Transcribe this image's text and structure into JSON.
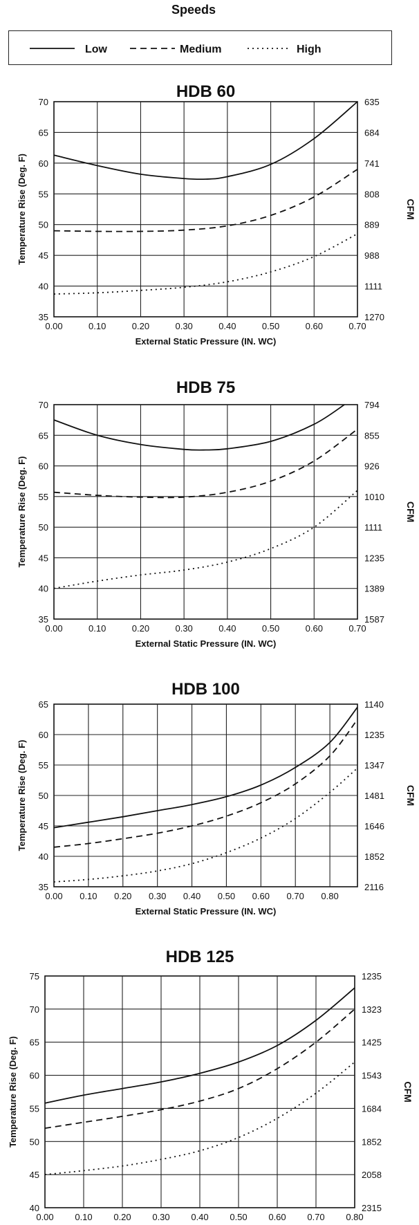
{
  "legend": {
    "title": "Speeds",
    "items": [
      {
        "label": "Low",
        "style": "solid"
      },
      {
        "label": "Medium",
        "style": "dashed"
      },
      {
        "label": "High",
        "style": "dotted"
      }
    ]
  },
  "chart_data": [
    {
      "type": "line",
      "title": "HDB 60",
      "xlabel": "External Static Pressure (IN. WC)",
      "ylabel": "Temperature Rise (Deg. F)",
      "y2label": "CFM",
      "xlim": [
        0,
        0.7
      ],
      "ylim": [
        35,
        70
      ],
      "x_ticks": [
        "0.00",
        "0.10",
        "0.20",
        "0.30",
        "0.40",
        "0.50",
        "0.60",
        "0.70"
      ],
      "y_ticks": [
        "35",
        "40",
        "45",
        "50",
        "55",
        "60",
        "65",
        "70"
      ],
      "y2_ticks": [
        "1270",
        "1111",
        "988",
        "889",
        "808",
        "741",
        "684",
        "635"
      ],
      "grid": true,
      "series": [
        {
          "name": "Low",
          "x": [
            0,
            0.1,
            0.2,
            0.3,
            0.35,
            0.4,
            0.5,
            0.6,
            0.7
          ],
          "y": [
            61.3,
            59.6,
            58.2,
            57.5,
            57.4,
            57.8,
            59.8,
            64.0,
            70.0
          ]
        },
        {
          "name": "Medium",
          "x": [
            0,
            0.1,
            0.2,
            0.3,
            0.4,
            0.5,
            0.6,
            0.7
          ],
          "y": [
            49.0,
            48.9,
            48.9,
            49.1,
            49.8,
            51.5,
            54.5,
            59.0
          ]
        },
        {
          "name": "High",
          "x": [
            0,
            0.1,
            0.2,
            0.3,
            0.4,
            0.5,
            0.6,
            0.7
          ],
          "y": [
            38.7,
            38.9,
            39.3,
            39.8,
            40.7,
            42.3,
            44.8,
            48.5
          ]
        }
      ]
    },
    {
      "type": "line",
      "title": "HDB 75",
      "xlabel": "External Static Pressure (IN. WC)",
      "ylabel": "Temperature Rise (Deg. F)",
      "y2label": "CFM",
      "xlim": [
        0,
        0.7
      ],
      "ylim": [
        35,
        70
      ],
      "x_ticks": [
        "0.00",
        "0.10",
        "0.20",
        "0.30",
        "0.40",
        "0.50",
        "0.60",
        "0.70"
      ],
      "y_ticks": [
        "35",
        "40",
        "45",
        "50",
        "55",
        "60",
        "65",
        "70"
      ],
      "y2_ticks": [
        "1587",
        "1389",
        "1235",
        "1111",
        "1010",
        "926",
        "855",
        "794"
      ],
      "grid": true,
      "series": [
        {
          "name": "Low",
          "x": [
            0,
            0.1,
            0.2,
            0.3,
            0.35,
            0.4,
            0.5,
            0.6,
            0.67
          ],
          "y": [
            67.5,
            65.0,
            63.5,
            62.7,
            62.6,
            62.8,
            64.0,
            66.8,
            70.0
          ]
        },
        {
          "name": "Medium",
          "x": [
            0,
            0.1,
            0.2,
            0.3,
            0.4,
            0.5,
            0.6,
            0.7
          ],
          "y": [
            55.7,
            55.2,
            54.9,
            54.9,
            55.7,
            57.5,
            60.8,
            66.0
          ]
        },
        {
          "name": "High",
          "x": [
            0,
            0.1,
            0.2,
            0.3,
            0.4,
            0.5,
            0.6,
            0.7
          ],
          "y": [
            40.0,
            41.2,
            42.2,
            43.0,
            44.3,
            46.5,
            50.0,
            56.0
          ]
        }
      ]
    },
    {
      "type": "line",
      "title": "HDB 100",
      "xlabel": "External Static Pressure (IN. WC)",
      "ylabel": "Temperature Rise (Deg. F)",
      "y2label": "CFM",
      "xlim": [
        0,
        0.88
      ],
      "ylim": [
        35,
        65
      ],
      "x_ticks": [
        "0.00",
        "0.10",
        "0.20",
        "0.30",
        "0.40",
        "0.50",
        "0.60",
        "0.70",
        "0.80"
      ],
      "y_ticks": [
        "35",
        "40",
        "45",
        "50",
        "55",
        "60",
        "65"
      ],
      "y2_ticks": [
        "2116",
        "1852",
        "1646",
        "1481",
        "1347",
        "1235",
        "1140"
      ],
      "grid": true,
      "series": [
        {
          "name": "Low",
          "x": [
            0,
            0.1,
            0.2,
            0.3,
            0.4,
            0.5,
            0.6,
            0.7,
            0.8,
            0.88
          ],
          "y": [
            44.7,
            45.6,
            46.5,
            47.5,
            48.5,
            49.8,
            51.7,
            54.6,
            58.7,
            64.5
          ]
        },
        {
          "name": "Medium",
          "x": [
            0,
            0.1,
            0.2,
            0.3,
            0.4,
            0.5,
            0.6,
            0.7,
            0.8,
            0.88
          ],
          "y": [
            41.5,
            42.1,
            42.9,
            43.8,
            45.0,
            46.6,
            48.8,
            51.9,
            56.5,
            62.5
          ]
        },
        {
          "name": "High",
          "x": [
            0,
            0.1,
            0.2,
            0.3,
            0.4,
            0.5,
            0.6,
            0.7,
            0.8,
            0.88
          ],
          "y": [
            35.8,
            36.2,
            36.8,
            37.6,
            38.8,
            40.6,
            43.0,
            46.2,
            50.5,
            54.5
          ]
        }
      ]
    },
    {
      "type": "line",
      "title": "HDB 125",
      "xlabel": "External Static Pressure (IN. WC)",
      "ylabel": "Temperature Rise (Deg. F)",
      "y2label": "CFM",
      "xlim": [
        0,
        0.8
      ],
      "ylim": [
        40,
        75
      ],
      "x_ticks": [
        "0.00",
        "0.10",
        "0.20",
        "0.30",
        "0.40",
        "0.50",
        "0.60",
        "0.70",
        "0.80"
      ],
      "y_ticks": [
        "40",
        "45",
        "50",
        "55",
        "60",
        "65",
        "70",
        "75"
      ],
      "y2_ticks": [
        "2315",
        "2058",
        "1852",
        "1684",
        "1543",
        "1425",
        "1323",
        "1235"
      ],
      "grid": true,
      "series": [
        {
          "name": "Low",
          "x": [
            0,
            0.1,
            0.2,
            0.3,
            0.4,
            0.5,
            0.6,
            0.7,
            0.8
          ],
          "y": [
            55.8,
            57.0,
            58.0,
            59.0,
            60.3,
            62.0,
            64.5,
            68.3,
            73.2
          ]
        },
        {
          "name": "Medium",
          "x": [
            0,
            0.1,
            0.2,
            0.3,
            0.4,
            0.5,
            0.6,
            0.7,
            0.8
          ],
          "y": [
            52.0,
            52.9,
            53.8,
            54.8,
            56.1,
            58.0,
            61.0,
            65.0,
            70.0
          ]
        },
        {
          "name": "High",
          "x": [
            0,
            0.1,
            0.2,
            0.3,
            0.4,
            0.5,
            0.6,
            0.7,
            0.8
          ],
          "y": [
            45.0,
            45.6,
            46.3,
            47.3,
            48.6,
            50.6,
            53.5,
            57.3,
            62.0
          ]
        }
      ]
    }
  ]
}
